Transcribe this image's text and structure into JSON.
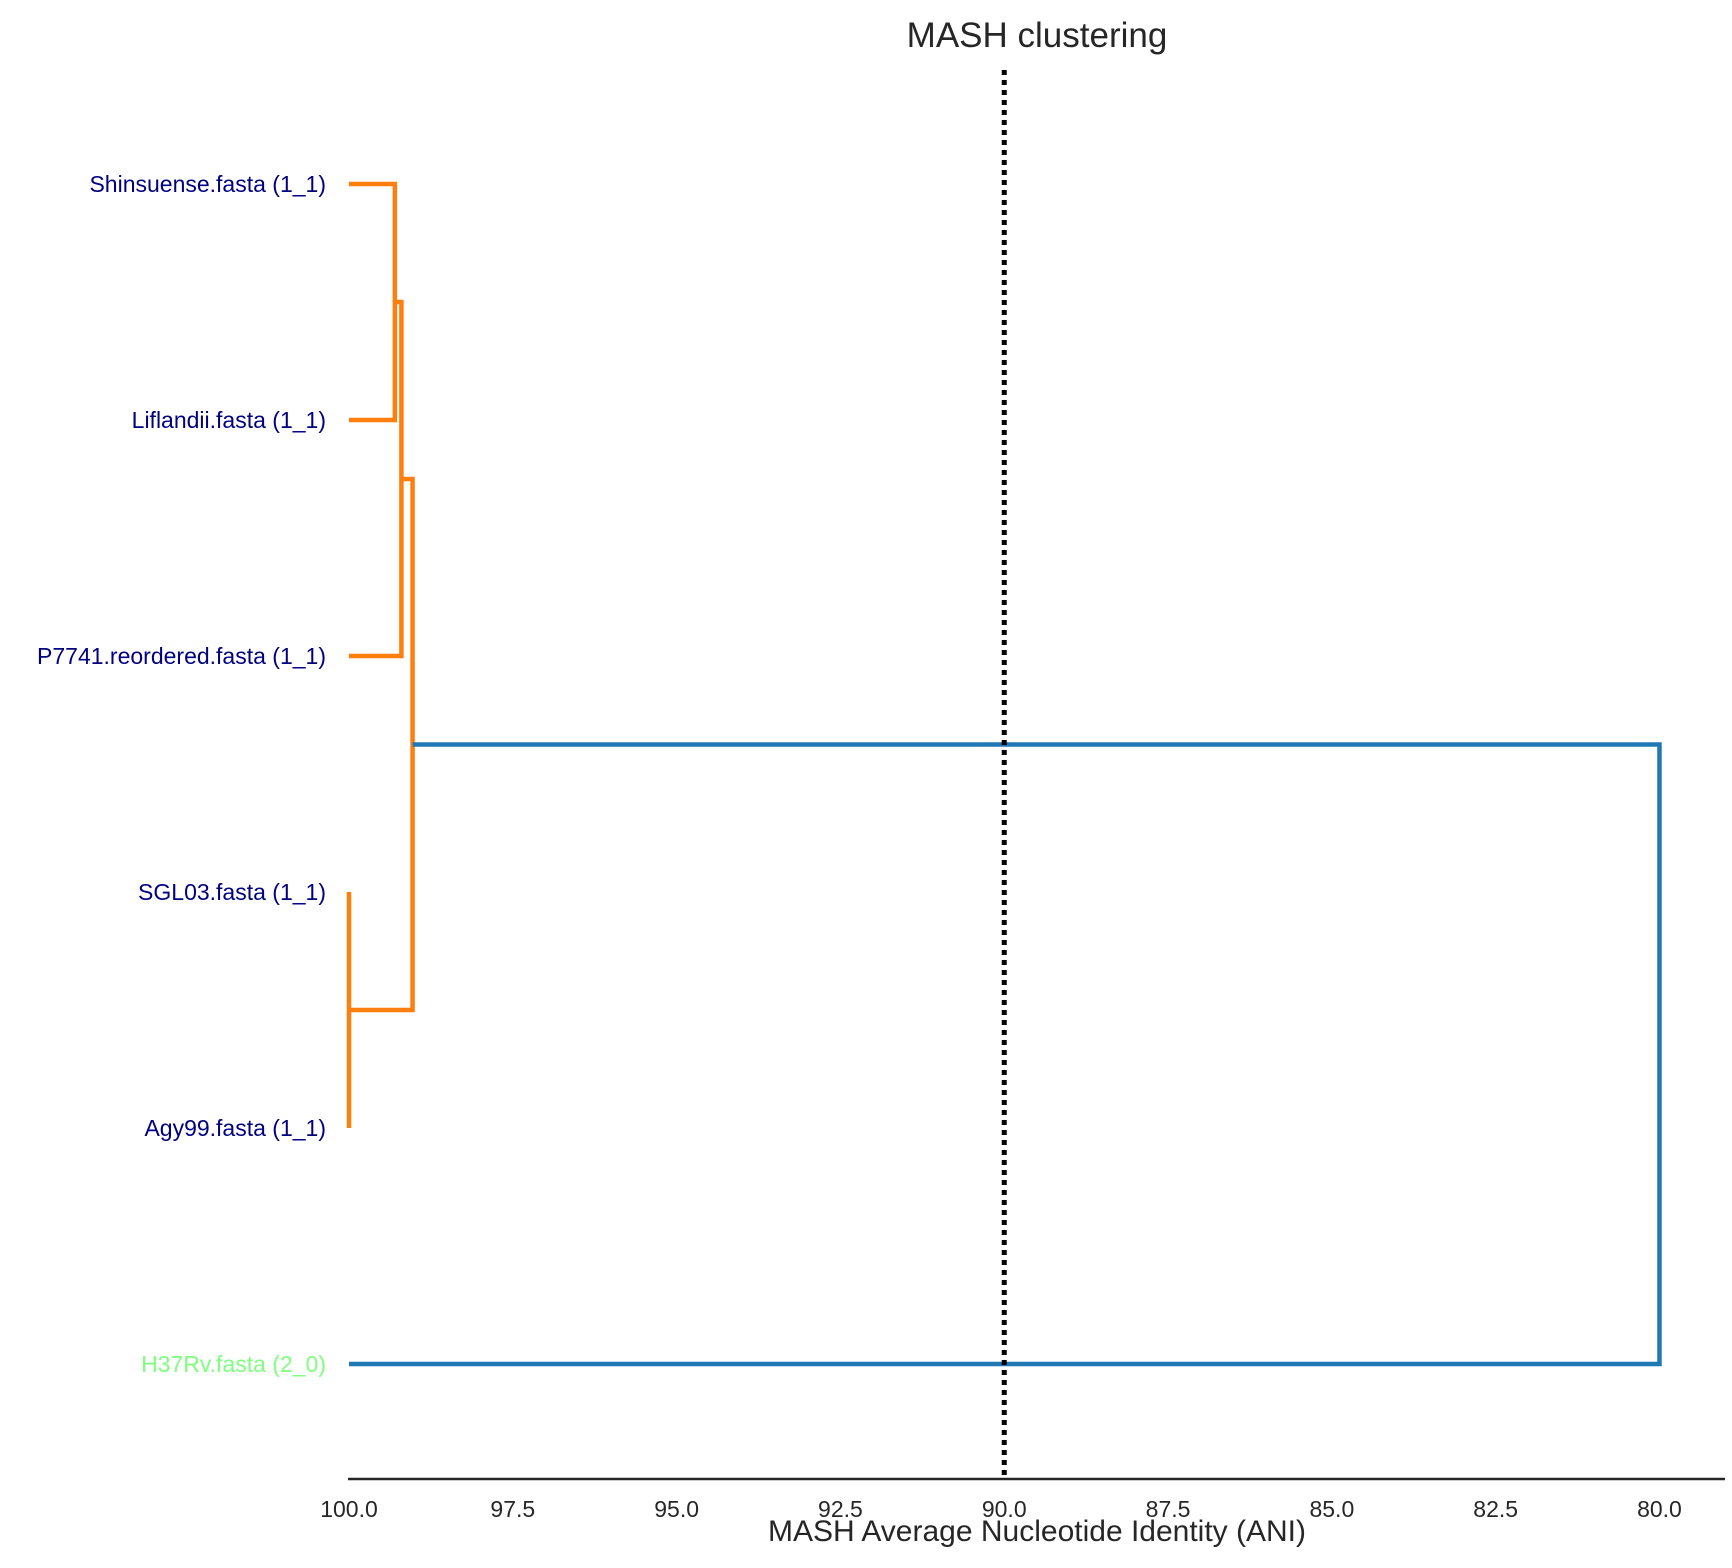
{
  "chart_data": {
    "type": "dendrogram",
    "title": "MASH clustering",
    "xlabel": "MASH Average Nucleotide Identity (ANI)",
    "ylabel": "",
    "xlim": [
      100.0,
      79.0
    ],
    "xticks": [
      "100.0",
      "97.5",
      "95.0",
      "92.5",
      "90.0",
      "87.5",
      "85.0",
      "82.5",
      "80.0"
    ],
    "xtick_values": [
      100.0,
      97.5,
      95.0,
      92.5,
      90.0,
      87.5,
      85.0,
      82.5,
      80.0
    ],
    "threshold": 90.0,
    "colors": {
      "cluster_1": "#ff7f0e",
      "root": "#1f77b4",
      "threshold": "#000000",
      "leaf_cluster_1": "#000080",
      "leaf_cluster_2": "#7fff7f",
      "axis": "#262626"
    },
    "leaves": [
      {
        "label": "Shinsuense.fasta (1_1)",
        "cluster": "1_1"
      },
      {
        "label": "Liflandii.fasta (1_1)",
        "cluster": "1_1"
      },
      {
        "label": "P7741.reordered.fasta (1_1)",
        "cluster": "1_1"
      },
      {
        "label": "SGL03.fasta (1_1)",
        "cluster": "1_1"
      },
      {
        "label": "Agy99.fasta (1_1)",
        "cluster": "1_1"
      },
      {
        "label": "H37Rv.fasta (2_0)",
        "cluster": "2_0"
      }
    ],
    "merges": [
      {
        "left": 0,
        "right": 1,
        "ani": 99.3,
        "color": "cluster_1"
      },
      {
        "left": 2,
        "right": "m0",
        "ani": 99.2,
        "color": "cluster_1"
      },
      {
        "left": 3,
        "right": 4,
        "ani": 100.0,
        "color": "cluster_1"
      },
      {
        "left": "m1",
        "right": "m2",
        "ani": 99.03,
        "color": "cluster_1"
      },
      {
        "left": "m3",
        "right": 5,
        "ani": 80.0,
        "color": "root"
      }
    ]
  }
}
